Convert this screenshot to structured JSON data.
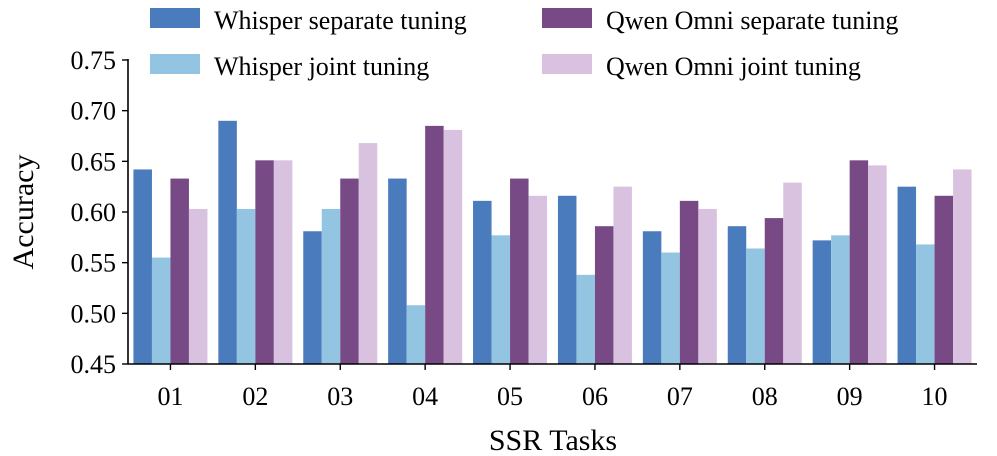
{
  "chart_data": {
    "type": "bar",
    "xlabel": "SSR Tasks",
    "ylabel": "Accuracy",
    "ylim": [
      0.45,
      0.75
    ],
    "yticks": [
      "0.45",
      "0.50",
      "0.55",
      "0.60",
      "0.65",
      "0.70",
      "0.75"
    ],
    "categories": [
      "01",
      "02",
      "03",
      "04",
      "05",
      "06",
      "07",
      "08",
      "09",
      "10"
    ],
    "legend_position": "top, two columns",
    "grid": false,
    "series": [
      {
        "name": "Whisper separate tuning",
        "color": "#4a7bbd",
        "values": [
          0.642,
          0.69,
          0.581,
          0.633,
          0.611,
          0.616,
          0.581,
          0.586,
          0.572,
          0.625
        ]
      },
      {
        "name": "Whisper joint tuning",
        "color": "#93c5e2",
        "values": [
          0.555,
          0.603,
          0.603,
          0.508,
          0.577,
          0.538,
          0.56,
          0.564,
          0.577,
          0.568
        ]
      },
      {
        "name": "Qwen Omni separate tuning",
        "color": "#774a85",
        "values": [
          0.633,
          0.651,
          0.633,
          0.685,
          0.633,
          0.586,
          0.611,
          0.594,
          0.651,
          0.616
        ]
      },
      {
        "name": "Qwen Omni joint tuning",
        "color": "#d8c2e0",
        "values": [
          0.603,
          0.651,
          0.668,
          0.681,
          0.616,
          0.625,
          0.603,
          0.629,
          0.646,
          0.642
        ]
      }
    ]
  }
}
